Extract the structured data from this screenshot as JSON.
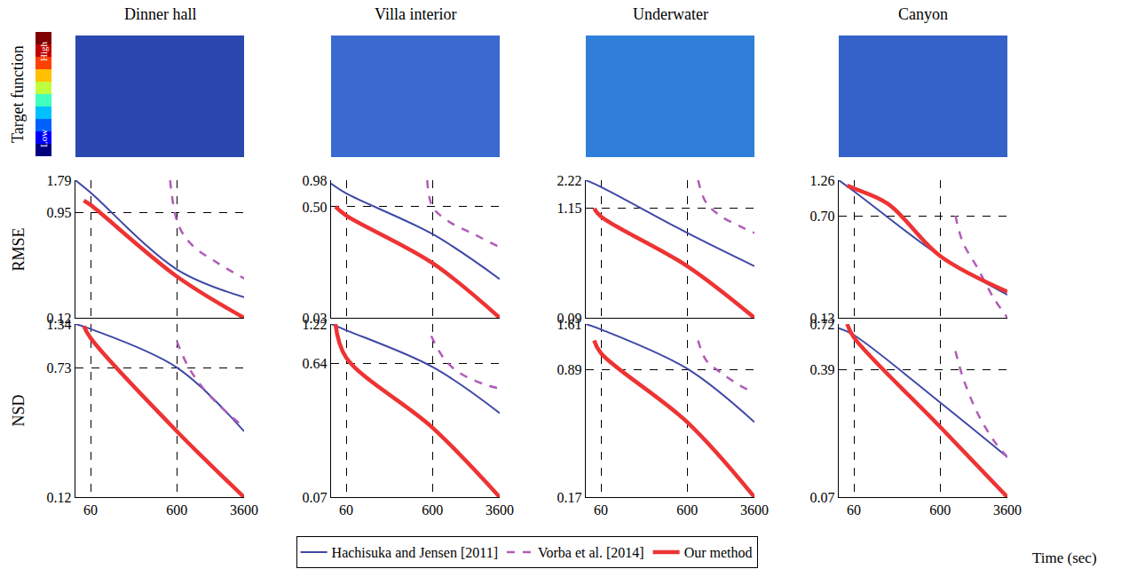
{
  "figure": {
    "columns": [
      "Dinner hall",
      "Villa interior",
      "Underwater",
      "Canyon"
    ],
    "rows": [
      "RMSE",
      "NSD"
    ],
    "colorbar": {
      "title": "Target function",
      "high": "High",
      "low": "Low"
    },
    "x_label": "Time (sec)",
    "legend": "bottom"
  },
  "chart_data": [
    {
      "type": "line",
      "log": true,
      "grid": true,
      "tick_labels": "y",
      "xlim": [
        40,
        3600
      ],
      "xticks": [
        60,
        600,
        3600
      ],
      "ylim": [
        0.12,
        1.79
      ],
      "yticks": [
        0.12,
        0.95,
        1.79
      ],
      "series": [
        {
          "name": "Hachisuka and Jensen [2011]",
          "color": "#3f48a6",
          "line_style": "solid",
          "x": [
            40,
            60,
            600,
            3600
          ],
          "values": [
            1.79,
            1.4,
            0.31,
            0.18
          ]
        },
        {
          "name": "Vorba et al. [2014]",
          "color": "#b15cb8",
          "line_style": "dash",
          "x": [
            500,
            620,
            900,
            1800,
            3600
          ],
          "values": [
            1.79,
            0.75,
            0.5,
            0.35,
            0.26
          ]
        },
        {
          "name": "Our method",
          "color": "#ee3333",
          "line_style": "solid",
          "x": [
            50,
            60,
            600,
            3600
          ],
          "values": [
            1.2,
            1.1,
            0.27,
            0.12
          ]
        }
      ]
    },
    {
      "type": "line",
      "log": true,
      "grid": true,
      "tick_labels": "y",
      "xlim": [
        40,
        3600
      ],
      "xticks": [
        60,
        600,
        3600
      ],
      "ylim": [
        0.03,
        0.98
      ],
      "yticks": [
        0.03,
        {
          "value": 0.5,
          "label": "0.50"
        },
        0.98
      ],
      "series": [
        {
          "name": "Hachisuka and Jensen [2011]",
          "color": "#3f48a6",
          "line_style": "solid",
          "x": [
            40,
            60,
            600,
            3600
          ],
          "values": [
            0.9,
            0.7,
            0.25,
            0.08
          ]
        },
        {
          "name": "Vorba et al. [2014]",
          "color": "#b15cb8",
          "line_style": "dash",
          "x": [
            520,
            600,
            900,
            1800,
            3600
          ],
          "values": [
            0.98,
            0.5,
            0.35,
            0.25,
            0.18
          ]
        },
        {
          "name": "Our method",
          "color": "#ee3333",
          "line_style": "solid",
          "x": [
            45,
            60,
            600,
            3600
          ],
          "values": [
            0.5,
            0.4,
            0.12,
            0.03
          ]
        }
      ]
    },
    {
      "type": "line",
      "log": true,
      "grid": true,
      "tick_labels": "y",
      "xlim": [
        40,
        3600
      ],
      "xticks": [
        60,
        600,
        3600
      ],
      "ylim": [
        0.09,
        2.22
      ],
      "yticks": [
        0.09,
        1.15,
        2.22
      ],
      "series": [
        {
          "name": "Hachisuka and Jensen [2011]",
          "color": "#3f48a6",
          "line_style": "solid",
          "x": [
            40,
            60,
            600,
            3600
          ],
          "values": [
            2.22,
            1.9,
            0.65,
            0.3
          ]
        },
        {
          "name": "Vorba et al. [2014]",
          "color": "#b15cb8",
          "line_style": "dash",
          "x": [
            800,
            1000,
            1500,
            2500,
            3600
          ],
          "values": [
            2.22,
            1.3,
            0.95,
            0.75,
            0.65
          ]
        },
        {
          "name": "Our method",
          "color": "#ee3333",
          "line_style": "solid",
          "x": [
            50,
            60,
            600,
            3600
          ],
          "values": [
            1.15,
            0.95,
            0.3,
            0.09
          ]
        }
      ]
    },
    {
      "type": "line",
      "log": true,
      "grid": true,
      "tick_labels": "y",
      "xlim": [
        40,
        3600
      ],
      "xticks": [
        60,
        600,
        3600
      ],
      "ylim": [
        0.13,
        1.26
      ],
      "yticks": [
        0.13,
        {
          "value": 0.7,
          "label": "0.70"
        },
        1.26
      ],
      "series": [
        {
          "name": "Hachisuka and Jensen [2011]",
          "color": "#3f48a6",
          "line_style": "solid",
          "x": [
            40,
            60,
            600,
            3600
          ],
          "values": [
            1.26,
            1.05,
            0.36,
            0.19
          ]
        },
        {
          "name": "Vorba et al. [2014]",
          "color": "#b15cb8",
          "line_style": "dash",
          "x": [
            900,
            1100,
            1600,
            2500,
            3600
          ],
          "values": [
            0.7,
            0.45,
            0.3,
            0.18,
            0.13
          ]
        },
        {
          "name": "Our method",
          "color": "#ee3333",
          "line_style": "solid",
          "x": [
            50,
            60,
            150,
            600,
            3600
          ],
          "values": [
            1.15,
            1.1,
            0.85,
            0.36,
            0.2
          ]
        }
      ]
    },
    {
      "type": "line",
      "log": true,
      "grid": true,
      "xlim": [
        40,
        3600
      ],
      "xticks": [
        60,
        600,
        3600
      ],
      "ylim": [
        0.12,
        1.34
      ],
      "yticks": [
        0.12,
        0.73,
        1.34
      ],
      "series": [
        {
          "name": "Hachisuka and Jensen [2011]",
          "color": "#3f48a6",
          "line_style": "solid",
          "x": [
            40,
            60,
            600,
            3600
          ],
          "values": [
            1.34,
            1.25,
            0.73,
            0.3
          ]
        },
        {
          "name": "Vorba et al. [2014]",
          "color": "#b15cb8",
          "line_style": "dash",
          "x": [
            600,
            800,
            1200,
            2400,
            3600
          ],
          "values": [
            1.05,
            0.75,
            0.55,
            0.38,
            0.32
          ]
        },
        {
          "name": "Our method",
          "color": "#ee3333",
          "line_style": "solid",
          "x": [
            50,
            60,
            600,
            3600
          ],
          "values": [
            1.3,
            1.1,
            0.3,
            0.12
          ]
        }
      ]
    },
    {
      "type": "line",
      "log": true,
      "grid": true,
      "xlim": [
        40,
        3600
      ],
      "xticks": [
        60,
        600,
        3600
      ],
      "ylim": [
        0.07,
        1.22
      ],
      "yticks": [
        0.07,
        0.64,
        1.22
      ],
      "series": [
        {
          "name": "Hachisuka and Jensen [2011]",
          "color": "#3f48a6",
          "line_style": "solid",
          "x": [
            40,
            60,
            600,
            3600
          ],
          "values": [
            1.22,
            1.1,
            0.6,
            0.28
          ]
        },
        {
          "name": "Vorba et al. [2014]",
          "color": "#b15cb8",
          "line_style": "dash",
          "x": [
            580,
            800,
            1200,
            2400,
            3600
          ],
          "values": [
            1.0,
            0.7,
            0.55,
            0.45,
            0.42
          ]
        },
        {
          "name": "Our method",
          "color": "#ee3333",
          "line_style": "solid",
          "x": [
            45,
            60,
            600,
            3600
          ],
          "values": [
            1.22,
            0.7,
            0.22,
            0.07
          ]
        }
      ]
    },
    {
      "type": "line",
      "log": true,
      "grid": true,
      "xlim": [
        40,
        3600
      ],
      "xticks": [
        60,
        600,
        3600
      ],
      "ylim": [
        0.17,
        1.61
      ],
      "yticks": [
        0.17,
        0.89,
        1.61
      ],
      "series": [
        {
          "name": "Hachisuka and Jensen [2011]",
          "color": "#3f48a6",
          "line_style": "solid",
          "x": [
            40,
            60,
            600,
            3600
          ],
          "values": [
            1.61,
            1.5,
            0.9,
            0.45
          ]
        },
        {
          "name": "Vorba et al. [2014]",
          "color": "#b15cb8",
          "line_style": "dash",
          "x": [
            800,
            1000,
            1500,
            2500,
            3600
          ],
          "values": [
            1.3,
            1.0,
            0.85,
            0.72,
            0.66
          ]
        },
        {
          "name": "Our method",
          "color": "#ee3333",
          "line_style": "solid",
          "x": [
            50,
            60,
            600,
            3600
          ],
          "values": [
            1.3,
            1.1,
            0.45,
            0.17
          ]
        }
      ]
    },
    {
      "type": "line",
      "log": true,
      "grid": true,
      "xlim": [
        40,
        3600
      ],
      "xticks": [
        60,
        600,
        3600
      ],
      "ylim": [
        0.07,
        0.72
      ],
      "yticks": [
        0.07,
        0.39,
        0.72
      ],
      "series": [
        {
          "name": "Hachisuka and Jensen [2011]",
          "color": "#3f48a6",
          "line_style": "solid",
          "x": [
            40,
            60,
            600,
            3600
          ],
          "values": [
            0.68,
            0.62,
            0.25,
            0.12
          ]
        },
        {
          "name": "Vorba et al. [2014]",
          "color": "#b15cb8",
          "line_style": "dash",
          "x": [
            900,
            1100,
            1600,
            2500,
            3600
          ],
          "values": [
            0.5,
            0.35,
            0.22,
            0.15,
            0.12
          ]
        },
        {
          "name": "Our method",
          "color": "#ee3333",
          "line_style": "solid",
          "x": [
            50,
            60,
            600,
            3600
          ],
          "values": [
            0.72,
            0.6,
            0.18,
            0.07
          ]
        }
      ]
    }
  ]
}
